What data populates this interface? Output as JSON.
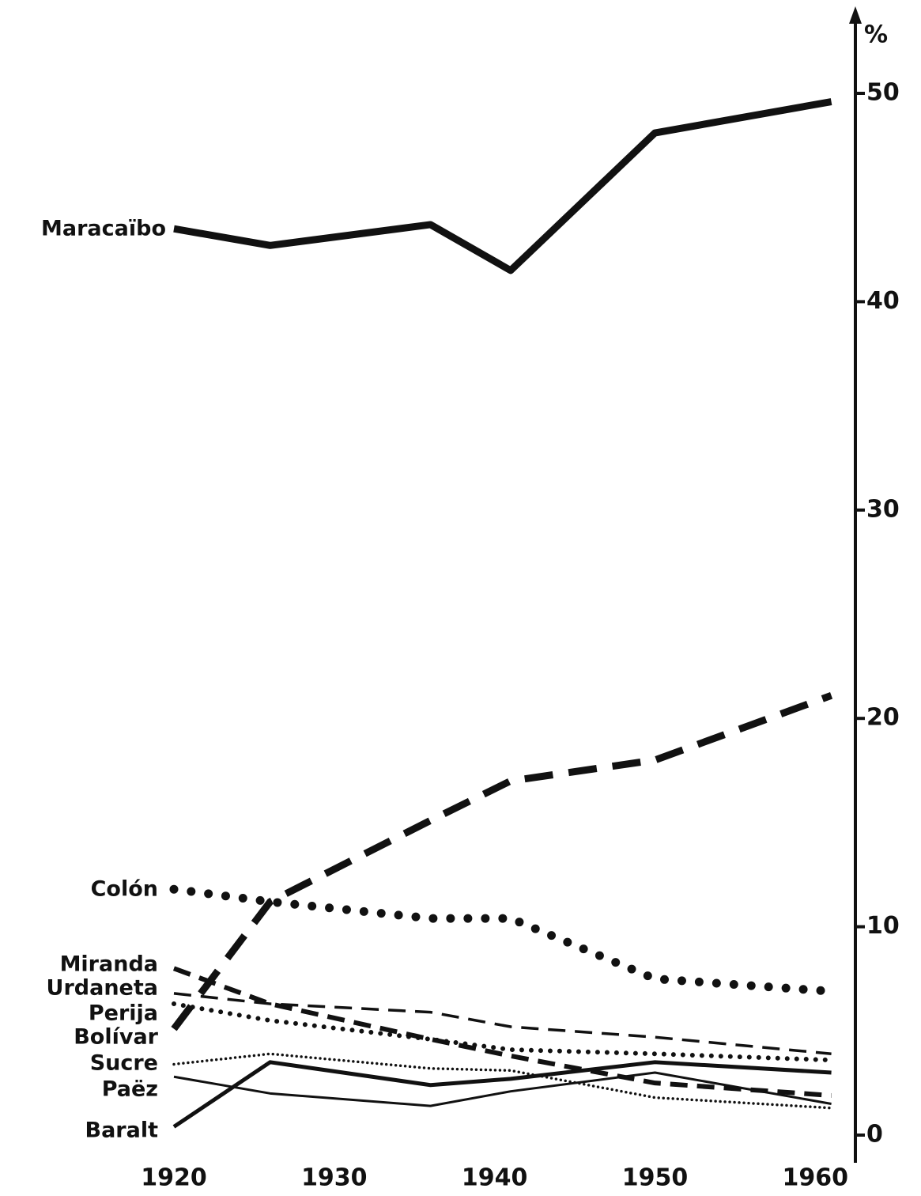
{
  "chart_data": {
    "type": "line",
    "y_axis_label": "%",
    "x_numeric": true,
    "xlim": [
      1920,
      1962.5
    ],
    "xticks": [
      1920,
      1930,
      1940,
      1950,
      1960
    ],
    "ylim": [
      0,
      50
    ],
    "yticks": [
      0,
      10,
      20,
      30,
      40,
      50
    ],
    "y_axis_side": "right",
    "grid": false,
    "series": [
      {
        "name": "Maracaïbo",
        "color": "#111111",
        "style": "thick-solid",
        "x": [
          1920,
          1926,
          1936,
          1941,
          1950,
          1961
        ],
        "values": [
          43.5,
          42.7,
          43.7,
          41.5,
          48.1,
          49.6
        ]
      },
      {
        "name": "Colón",
        "color": "#111111",
        "style": "thick-dotted",
        "x": [
          1920,
          1926,
          1936,
          1941,
          1950,
          1961
        ],
        "values": [
          11.8,
          11.2,
          10.4,
          10.4,
          7.5,
          6.9
        ]
      },
      {
        "name": "Bolívar",
        "color": "#111111",
        "style": "thick-dashed",
        "x": [
          1920,
          1926,
          1936,
          1941,
          1950,
          1961
        ],
        "values": [
          5.1,
          11.2,
          15.1,
          17.0,
          18.0,
          21.1
        ]
      },
      {
        "name": "Miranda",
        "color": "#111111",
        "style": "dashed",
        "x": [
          1920,
          1926,
          1936,
          1941,
          1950,
          1961
        ],
        "values": [
          8.0,
          6.3,
          4.6,
          3.8,
          2.5,
          1.9
        ]
      },
      {
        "name": "Urdaneta",
        "color": "#111111",
        "style": "thin-dashed",
        "x": [
          1920,
          1926,
          1936,
          1941,
          1950,
          1961
        ],
        "values": [
          6.8,
          6.3,
          5.9,
          5.2,
          4.7,
          3.9
        ]
      },
      {
        "name": "Perija",
        "color": "#111111",
        "style": "dotted",
        "x": [
          1920,
          1926,
          1936,
          1941,
          1950,
          1961
        ],
        "values": [
          6.3,
          5.5,
          4.6,
          4.1,
          3.9,
          3.6
        ]
      },
      {
        "name": "Sucre",
        "color": "#111111",
        "style": "thin-dotted",
        "x": [
          1920,
          1926,
          1936,
          1941,
          1950,
          1961
        ],
        "values": [
          3.4,
          3.9,
          3.2,
          3.1,
          1.8,
          1.3
        ]
      },
      {
        "name": "Paëz",
        "color": "#111111",
        "style": "thin-solid",
        "x": [
          1920,
          1926,
          1936,
          1941,
          1950,
          1961
        ],
        "values": [
          2.8,
          2.0,
          1.4,
          2.1,
          3.0,
          1.5
        ]
      },
      {
        "name": "Baralt",
        "color": "#111111",
        "style": "solid",
        "x": [
          1920,
          1926,
          1936,
          1941,
          1950,
          1961
        ],
        "values": [
          0.4,
          3.5,
          2.4,
          2.7,
          3.5,
          3.0
        ]
      }
    ]
  }
}
